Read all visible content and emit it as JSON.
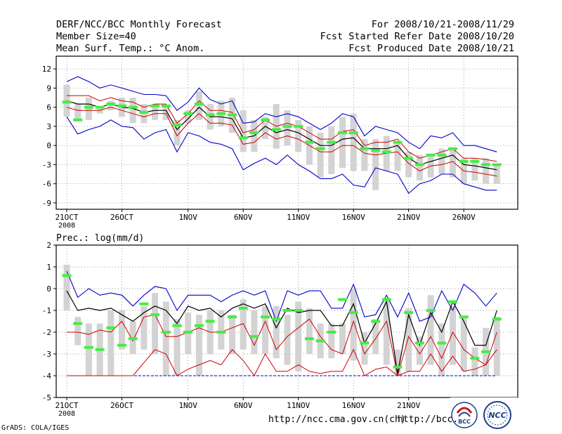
{
  "header": {
    "title": "DERF/NCC/BCC Monthly Forecast",
    "member_size": "Member Size=40",
    "variable": "Mean Surf. Temp.: °C Anom.",
    "period": "For 2008/10/21-2008/11/29",
    "refer_date": "Fcst Started Refer Date 2008/10/20",
    "produced_date": "Fcst Produced Date 2008/10/21"
  },
  "precip_label": "Prec.: log(mm/d)",
  "footer": {
    "grads": "GrADS: COLA/IGES",
    "url1": "http://ncc.cma.gov.cn(ch)",
    "url2": "http://bcc."
  },
  "logos": {
    "bcc": "BCC",
    "ncc": "NCC"
  },
  "colors": {
    "envelope": "#0000cc",
    "spread": "#cc0000",
    "mean": "#000000",
    "box": "#d3d3d3",
    "obs": "#44ee44",
    "grid": "#777777"
  },
  "chart_data": [
    {
      "type": "line",
      "title": "Mean Surf. Temp.: °C Anom.",
      "ylabel": "°C Anom.",
      "ylim": [
        -10,
        14
      ],
      "yticks": [
        -9,
        -6,
        -3,
        0,
        3,
        6,
        9,
        12
      ],
      "grid": true,
      "xlabels": [
        {
          "day": 0,
          "label": "21OCT"
        },
        {
          "day": 5,
          "label": "26OCT"
        },
        {
          "day": 11,
          "label": "1NOV"
        },
        {
          "day": 16,
          "label": "6NOV"
        },
        {
          "day": 21,
          "label": "11NOV"
        },
        {
          "day": 26,
          "label": "16NOV"
        },
        {
          "day": 31,
          "label": "21NOV"
        },
        {
          "day": 36,
          "label": "26NOV"
        }
      ],
      "year_label": "2008",
      "days": 40,
      "series": [
        {
          "name": "max",
          "values": [
            10,
            10.8,
            10,
            9,
            9.5,
            9,
            8.5,
            8,
            8,
            7.8,
            5.5,
            6.8,
            9,
            7.2,
            6.5,
            7,
            3.5,
            3.7,
            5,
            4.5,
            5,
            4.5,
            3.5,
            2.5,
            3.5,
            5,
            4.5,
            1.5,
            3,
            2.5,
            2,
            0.5,
            -0.5,
            1.5,
            1.2,
            2,
            0,
            0,
            -0.5,
            -1
          ]
        },
        {
          "name": "upper",
          "values": [
            7.8,
            7.8,
            7.8,
            7,
            7.5,
            7,
            6.8,
            6,
            6.5,
            6.5,
            3.5,
            5,
            7,
            5.5,
            5.5,
            5.2,
            2,
            2.5,
            4,
            3,
            3.5,
            3,
            2,
            1,
            1,
            2.2,
            2.5,
            0,
            0.5,
            0.5,
            1,
            -1,
            -2,
            -1.5,
            -1,
            -0.5,
            -2,
            -2,
            -2.2,
            -2.5
          ]
        },
        {
          "name": "mean",
          "values": [
            7,
            6.5,
            6.5,
            6,
            6.5,
            6,
            5.8,
            5.2,
            5.5,
            5.5,
            2.5,
            4.2,
            6,
            4.5,
            4.5,
            4.2,
            1.2,
            1.5,
            3,
            2,
            2.5,
            2,
            1,
            0,
            0,
            1,
            1.2,
            -0.5,
            -0.5,
            -0.5,
            0,
            -2,
            -3,
            -2.5,
            -2,
            -1.5,
            -3,
            -3.2,
            -3.5,
            -3.8
          ]
        },
        {
          "name": "lower",
          "values": [
            6,
            5.5,
            5.5,
            5.5,
            6,
            5.5,
            5,
            4.5,
            5,
            5,
            1.5,
            3.5,
            5,
            3.5,
            3.5,
            3.2,
            0.2,
            0.5,
            2,
            1,
            1.5,
            1,
            0,
            -1,
            -1,
            0,
            0,
            -1.2,
            -1.5,
            -1.2,
            -1,
            -2.8,
            -4,
            -3.2,
            -3,
            -2.5,
            -4,
            -4.2,
            -4.5,
            -4.8
          ]
        },
        {
          "name": "min",
          "values": [
            4.5,
            1.8,
            2.5,
            3,
            4,
            3,
            2.8,
            1,
            2,
            2.5,
            -1,
            2,
            1.5,
            0.5,
            0.2,
            -0.5,
            -3.8,
            -2.8,
            -2,
            -3,
            -1.5,
            -3,
            -4,
            -5.2,
            -5.2,
            -4.5,
            -6.2,
            -6.5,
            -3.5,
            -4,
            -4.5,
            -7.5,
            -6,
            -5.5,
            -4.5,
            -4.5,
            -6,
            -6.5,
            -7,
            -7
          ]
        },
        {
          "name": "box_top",
          "values": [
            9.5,
            6.5,
            7.5,
            6,
            7,
            7.5,
            7.5,
            6.5,
            6.5,
            6,
            4,
            5.5,
            8.5,
            6.5,
            7,
            7.5,
            5.5,
            4,
            4.5,
            6.5,
            5.5,
            4,
            3,
            2,
            3,
            4.5,
            5,
            1,
            1,
            1.5,
            0.5,
            -1,
            -1.5,
            -1.5,
            -0.5,
            -0.5,
            -2,
            -2,
            -2,
            -3
          ]
        },
        {
          "name": "box_bottom",
          "values": [
            4.5,
            4,
            4,
            5,
            5.5,
            4.5,
            3.5,
            3.5,
            4,
            4,
            0,
            3.5,
            4,
            2.5,
            3,
            2,
            -1,
            -1,
            1,
            -0.5,
            0,
            -1,
            -3,
            -5,
            -4.5,
            -3.5,
            -4,
            -4,
            -7,
            -4,
            -4,
            -5,
            -5.5,
            -5,
            -4.5,
            -5,
            -6,
            -5.5,
            -6,
            -6
          ]
        },
        {
          "name": "observed",
          "values": [
            6.8,
            4,
            6,
            6,
            6.5,
            6.2,
            6,
            5.2,
            6.2,
            6.2,
            3.2,
            5,
            6.5,
            4.8,
            5,
            4.8,
            1.2,
            2,
            4,
            2.5,
            3,
            3,
            0.5,
            -0.5,
            0.5,
            2,
            2,
            -0.5,
            -0.8,
            -1,
            0.5,
            -2,
            -3,
            -1.5,
            -1.5,
            -0.5,
            -2.5,
            -2.5,
            -3,
            -3
          ]
        }
      ]
    },
    {
      "type": "line",
      "title": "Prec.: log(mm/d)",
      "ylabel": "log(mm/d)",
      "ylim": [
        -5,
        2
      ],
      "yticks": [
        -5,
        -4,
        -3,
        -2,
        -1,
        0,
        1,
        2
      ],
      "grid": true,
      "xlabels": [
        {
          "day": 0,
          "label": "21OCT"
        },
        {
          "day": 5,
          "label": "26OCT"
        },
        {
          "day": 11,
          "label": "1NOV"
        },
        {
          "day": 16,
          "label": "6NOV"
        },
        {
          "day": 21,
          "label": "11NOV"
        },
        {
          "day": 26,
          "label": "16NOV"
        },
        {
          "day": 31,
          "label": "21NOV"
        }
      ],
      "year_label": "2008",
      "days": 40,
      "series": [
        {
          "name": "max",
          "values": [
            0.8,
            -0.4,
            0,
            -0.3,
            -0.2,
            -0.3,
            -0.8,
            -0.3,
            0.1,
            0,
            -1,
            -0.3,
            -0.3,
            -0.3,
            -0.6,
            -0.3,
            -0.1,
            -0.3,
            -0.1,
            -1.5,
            -0.1,
            -0.3,
            -0.1,
            -0.1,
            -0.9,
            -0.9,
            0.2,
            -1.3,
            -1.2,
            -0.3,
            -1.3,
            -0.2,
            -1.5,
            -1.3,
            -0.1,
            -1,
            0.2,
            -0.2,
            -0.8,
            -0.2
          ]
        },
        {
          "name": "mean",
          "values": [
            -0.1,
            -1,
            -0.9,
            -1,
            -0.9,
            -1.2,
            -1.5,
            -1.1,
            -0.8,
            -1,
            -1.6,
            -0.8,
            -1,
            -0.9,
            -1.3,
            -0.9,
            -0.7,
            -0.9,
            -0.7,
            -1.8,
            -0.9,
            -1.1,
            -1.0,
            -1.0,
            -1.7,
            -1.7,
            -0.7,
            -2.5,
            -1.6,
            -0.6,
            -3.9,
            -1.2,
            -2.6,
            -1.1,
            -2.0,
            -0.6,
            -1.5,
            -2.6,
            -2.6,
            -1.0
          ]
        },
        {
          "name": "upper",
          "values": [
            -2,
            -2,
            -2.1,
            -1.9,
            -2,
            -1.5,
            -2.4,
            -1.3,
            -1.2,
            -2.2,
            -2.2,
            -2,
            -1.8,
            -2,
            -2,
            -1.8,
            -1.6,
            -2.6,
            -1.5,
            -2.8,
            -2.2,
            -1.8,
            -1.4,
            -2.2,
            -2.8,
            -3,
            -1.5,
            -3.0,
            -2.3,
            -1.5,
            -4.0,
            -2.2,
            -3.0,
            -2.2,
            -3.2,
            -2.0,
            -2.8,
            -3.2,
            -3.5,
            -2.0
          ]
        },
        {
          "name": "lower",
          "values": [
            -4,
            -4,
            -4,
            -4,
            -4,
            -4,
            -4,
            -3.4,
            -2.8,
            -3,
            -4,
            -3.7,
            -3.5,
            -3.3,
            -3.5,
            -2.8,
            -3.3,
            -4,
            -3.0,
            -3.8,
            -3.8,
            -3.5,
            -3.8,
            -3.9,
            -3.8,
            -3.8,
            -2.8,
            -4.0,
            -3.7,
            -3.6,
            -4.0,
            -3.8,
            -3.8,
            -3.0,
            -3.8,
            -3.1,
            -3.8,
            -3.7,
            -3.5,
            -2.8
          ]
        },
        {
          "name": "min",
          "values": [
            -4,
            -4,
            -4,
            -4,
            -4,
            -4,
            -4,
            -4,
            -4,
            -4,
            -4,
            -4,
            -4,
            -4,
            -4,
            -4,
            -4,
            -4,
            -4,
            -4,
            -4,
            -4,
            -4,
            -4,
            -4,
            -4,
            -4,
            -4,
            -4,
            -4,
            -4,
            -4,
            -4,
            -4,
            -4,
            -4,
            -4,
            -4,
            -4,
            -4
          ]
        },
        {
          "name": "box_top",
          "values": [
            1.1,
            -1.3,
            -1.6,
            -1.6,
            -1.0,
            -1.0,
            -1.5,
            -0.8,
            -0.2,
            -0.6,
            -1.4,
            -1.1,
            -1.2,
            -1.0,
            -1.0,
            -1.2,
            -0.5,
            -1.0,
            -0.8,
            -0.8,
            -1.2,
            -0.6,
            -0.9,
            -1.6,
            -1.6,
            -1.6,
            0.0,
            -2.0,
            -1.4,
            -0.5,
            -2.8,
            -0.9,
            -2.2,
            -0.3,
            -1.6,
            -0.8,
            -1.3,
            -2.7,
            -1.8,
            -1.3
          ]
        },
        {
          "name": "box_bottom",
          "values": [
            -1.0,
            -2.6,
            -4.0,
            -4.0,
            -4.0,
            -2.8,
            -3.0,
            -2.8,
            -3.0,
            -4.0,
            -4.0,
            -3.0,
            -4.0,
            -3.0,
            -2.8,
            -3.0,
            -2.8,
            -3.0,
            -3.0,
            -3.2,
            -3.5,
            -3.8,
            -3.0,
            -3.2,
            -3.2,
            -3.0,
            -3.3,
            -3.5,
            -3.0,
            -3.5,
            -4.0,
            -3.8,
            -3.5,
            -3.5,
            -4.0,
            -3.5,
            -3.8,
            -4.0,
            -4.0,
            -4.0
          ]
        },
        {
          "name": "observed",
          "values": [
            0.6,
            -1.6,
            -2.7,
            -2.8,
            -1.8,
            -2.6,
            -2.3,
            -0.7,
            -1.2,
            -2.0,
            -1.7,
            -2.0,
            -1.7,
            -1.5,
            -2.0,
            -1.3,
            -0.9,
            -2.2,
            -1.3,
            -1.4,
            -1.0,
            -1.0,
            -2.3,
            -2.4,
            -2.0,
            -0.5,
            -1.1,
            -2.5,
            -1.5,
            -0.5,
            -3.6,
            -1.1,
            -2.5,
            -1.0,
            -2.5,
            -0.6,
            -1.3,
            -3.2,
            -2.9,
            -1.4
          ]
        }
      ]
    }
  ]
}
